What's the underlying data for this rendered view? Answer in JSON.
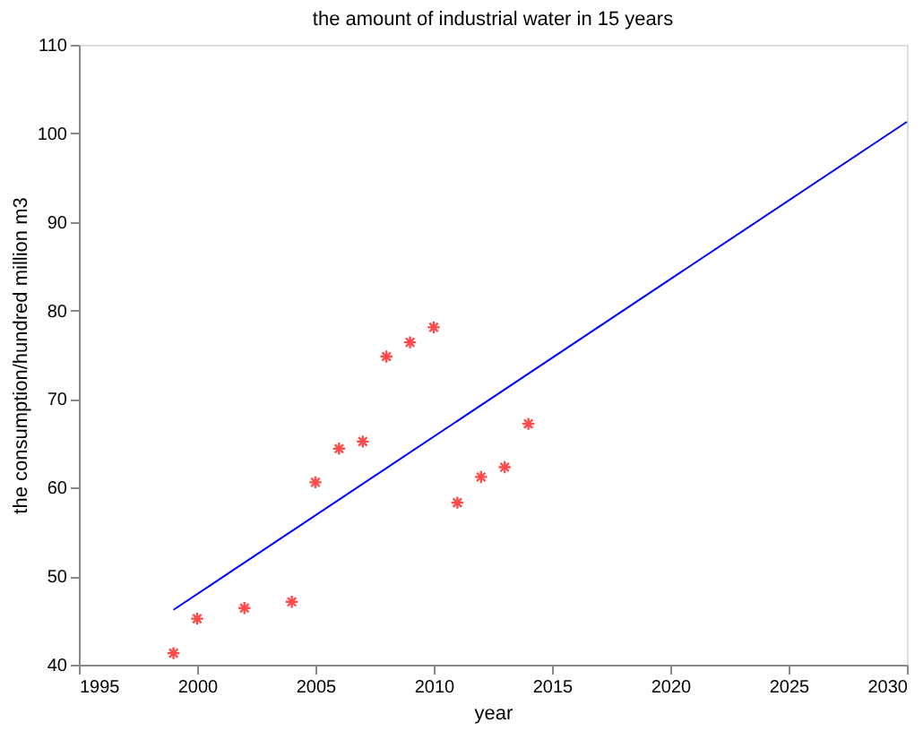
{
  "chart_data": {
    "type": "scatter",
    "title": "the amount of industrial water in 15 years",
    "xlabel": "year",
    "ylabel": "the consumption/hundred million m3",
    "grid": false,
    "xlim": [
      1995,
      2030
    ],
    "xticks": [
      1995,
      2000,
      2005,
      2010,
      2015,
      2020,
      2025,
      2030
    ],
    "ylim": [
      40,
      110
    ],
    "yticks": [
      40,
      50,
      60,
      70,
      80,
      90,
      100,
      110
    ],
    "series": [
      {
        "marker": "cross",
        "color": "#ff0000",
        "x": [
          1999,
          2000,
          2002,
          2004,
          2005,
          2006,
          2007,
          2008,
          2009,
          2010,
          2011,
          2012,
          2013,
          2014
        ],
        "values": [
          41.3,
          45.2,
          46.4,
          47.1,
          60.6,
          64.4,
          65.2,
          74.8,
          76.4,
          78.1,
          58.3,
          61.2,
          62.3,
          67.2
        ]
      },
      {
        "type": "line",
        "color": "#0000ff",
        "line_style": "solid",
        "x": [
          1999,
          2030
        ],
        "values": [
          46.2,
          101.3
        ]
      }
    ]
  }
}
